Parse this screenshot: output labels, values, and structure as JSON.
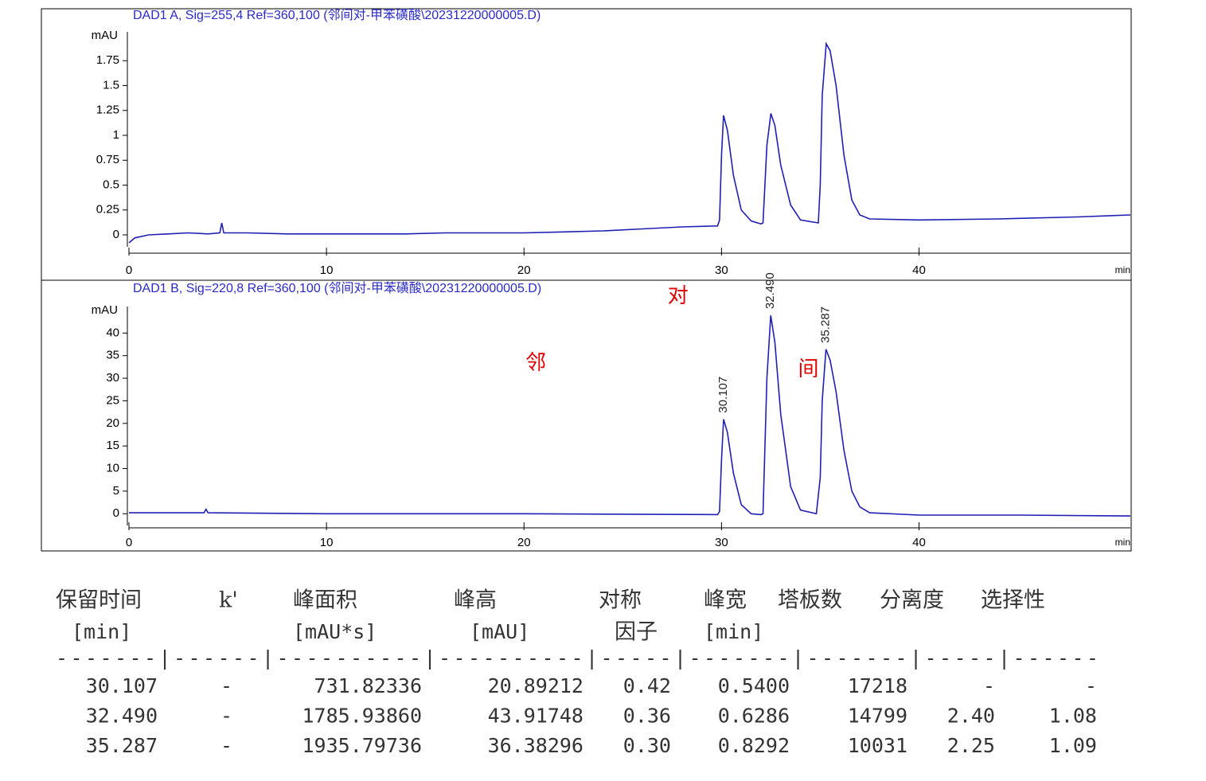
{
  "chart_data": [
    {
      "type": "line",
      "title": "DAD1 A, Sig=255,4 Ref=360,100 (邻间对-甲苯磺酸\\20231220000005.D)",
      "y_label": "mAU",
      "x_label": "min",
      "color": "#1f1fb4",
      "x": [
        0,
        0.3,
        1,
        2,
        3,
        4,
        4.6,
        4.7,
        4.8,
        6,
        8,
        10,
        12,
        14,
        16,
        18,
        20,
        22,
        24,
        26,
        28,
        29.8,
        29.9,
        30.0,
        30.1,
        30.3,
        30.6,
        31.0,
        31.5,
        32.0,
        32.1,
        32.3,
        32.5,
        32.7,
        33.0,
        33.5,
        34.0,
        34.9,
        35.0,
        35.1,
        35.3,
        35.5,
        35.8,
        36.2,
        36.6,
        37,
        37.5,
        40,
        44,
        48,
        50.7
      ],
      "values": [
        -0.08,
        -0.03,
        0.0,
        0.01,
        0.02,
        0.01,
        0.02,
        0.12,
        0.02,
        0.02,
        0.01,
        0.01,
        0.01,
        0.01,
        0.02,
        0.02,
        0.02,
        0.03,
        0.04,
        0.06,
        0.08,
        0.09,
        0.15,
        0.8,
        1.2,
        1.05,
        0.6,
        0.25,
        0.14,
        0.11,
        0.12,
        0.9,
        1.22,
        1.1,
        0.7,
        0.3,
        0.15,
        0.12,
        0.5,
        1.4,
        1.92,
        1.85,
        1.5,
        0.8,
        0.35,
        0.2,
        0.16,
        0.15,
        0.16,
        0.18,
        0.2
      ],
      "xlim": [
        0,
        50.7
      ],
      "ylim": [
        -0.12,
        2.0
      ],
      "xticks": [
        0,
        10,
        20,
        30,
        40
      ],
      "yticks": [
        0,
        0.25,
        0.5,
        0.75,
        1,
        1.25,
        1.5,
        1.75
      ]
    },
    {
      "type": "line",
      "title": "DAD1 B, Sig=220,8 Ref=360,100 (邻间对-甲苯磺酸\\20231220000005.D)",
      "y_label": "mAU",
      "x_label": "min",
      "color": "#1f1fb4",
      "x": [
        0,
        3.8,
        3.9,
        4.0,
        10,
        20,
        29.8,
        29.9,
        30.0,
        30.107,
        30.3,
        30.6,
        31.0,
        31.5,
        32.0,
        32.1,
        32.3,
        32.49,
        32.7,
        33.0,
        33.5,
        34.0,
        34.8,
        35.0,
        35.1,
        35.287,
        35.5,
        35.8,
        36.2,
        36.6,
        37,
        37.5,
        40,
        45,
        50.7
      ],
      "values": [
        0.2,
        0.2,
        1,
        0.2,
        0,
        0,
        -0.2,
        0.5,
        12,
        20.9,
        18,
        9,
        2,
        0,
        -0.2,
        0,
        30,
        43.9,
        38,
        22,
        6,
        0.8,
        0,
        8,
        25,
        36.4,
        34,
        27,
        14,
        5,
        1.5,
        0.2,
        -0.3,
        -0.3,
        -0.5
      ],
      "xlim": [
        0,
        50.7
      ],
      "ylim": [
        -2.6,
        45
      ],
      "xticks": [
        0,
        10,
        20,
        30,
        40
      ],
      "yticks": [
        0,
        5,
        10,
        15,
        20,
        25,
        30,
        35,
        40
      ],
      "peak_labels": [
        {
          "text": "30.107",
          "x": 30.107,
          "y": 20.89212
        },
        {
          "text": "32.490",
          "x": 32.49,
          "y": 43.91748
        },
        {
          "text": "35.287",
          "x": 35.287,
          "y": 36.38296
        }
      ],
      "annotations": [
        {
          "text": "对",
          "x": 27.8,
          "y": 48
        },
        {
          "text": "邻",
          "x": 20.6,
          "y": 33.2
        },
        {
          "text": "间",
          "x": 34.4,
          "y": 31.8
        }
      ]
    }
  ],
  "table": {
    "columns": [
      [
        "保留时间",
        "[min]"
      ],
      [
        "k'"
      ],
      [
        "峰面积",
        "[mAU*s]"
      ],
      [
        "峰高",
        "[mAU]"
      ],
      [
        "对称",
        "因子"
      ],
      [
        "峰宽",
        "[min]"
      ],
      [
        "塔板数"
      ],
      [
        "分离度"
      ],
      [
        "选择性"
      ]
    ],
    "separator": "-------|------|----------|----------|-----|-------|-------|-----|------",
    "rows": [
      [
        "30.107",
        "-",
        "731.82336",
        "20.89212",
        "0.42",
        "0.5400",
        "17218",
        "-",
        "-"
      ],
      [
        "32.490",
        "-",
        "1785.93860",
        "43.91748",
        "0.36",
        "0.6286",
        "14799",
        "2.40",
        "1.08"
      ],
      [
        "35.287",
        "-",
        "1935.79736",
        "36.38296",
        "0.30",
        "0.8292",
        "10031",
        "2.25",
        "1.09"
      ]
    ]
  }
}
